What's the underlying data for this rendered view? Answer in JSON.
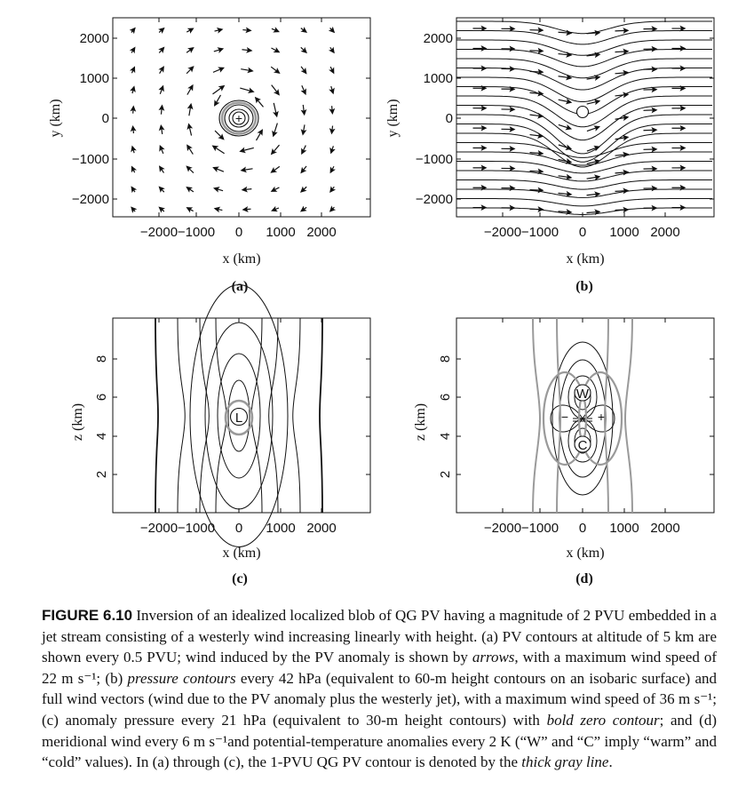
{
  "panels": [
    {
      "label": "(a)",
      "x_title": "x (km)",
      "y_title": "y (km)",
      "x_ticks": [
        "−2000",
        "−1000",
        "0",
        "1000",
        "2000"
      ],
      "y_ticks": [
        "2000",
        "1000",
        "0",
        "−1000",
        "−2000"
      ],
      "center_symbol": "+"
    },
    {
      "label": "(b)",
      "x_title": "x (km)",
      "y_title": "y (km)",
      "x_ticks": [
        "−2000",
        "−1000",
        "0",
        "1000",
        "2000"
      ],
      "y_ticks": [
        "2000",
        "1000",
        "0",
        "−1000",
        "−2000"
      ]
    },
    {
      "label": "(c)",
      "x_title": "x (km)",
      "y_title": "z (km)",
      "x_ticks": [
        "−2000",
        "−1000",
        "0",
        "1000",
        "2000"
      ],
      "y_ticks": [
        "8",
        "6",
        "4",
        "2"
      ],
      "center_symbol": "L"
    },
    {
      "label": "(d)",
      "x_title": "x (km)",
      "y_title": "z (km)",
      "x_ticks": [
        "−2000",
        "−1000",
        "0",
        "1000",
        "2000"
      ],
      "y_ticks": [
        "8",
        "6",
        "4",
        "2"
      ],
      "warm_symbol": "W",
      "cold_symbol": "C",
      "minus_symbol": "−",
      "plus_symbol": "+"
    }
  ],
  "caption": {
    "label": "FIGURE 6.10",
    "segments": [
      {
        "t": "  Inversion of an idealized localized blob of QG PV having a magnitude of 2 PVU embedded in a jet stream consisting of a westerly wind increasing linearly with height. (a) PV contours at altitude of 5 km are shown every 0.5 PVU; wind induced by the PV anomaly is shown by ",
        "i": false
      },
      {
        "t": "arrows",
        "i": true
      },
      {
        "t": ", with a maximum wind speed of 22 m s⁻¹; (b) ",
        "i": false
      },
      {
        "t": "pressure contours",
        "i": true
      },
      {
        "t": " every 42 hPa (equivalent to 60-m height contours on an isobaric surface) and full wind vectors (wind due to the PV anomaly plus the westerly jet), with a maximum wind speed of 36 m s⁻¹; (c) anomaly pressure every 21 hPa (equivalent to 30-m height contours) with ",
        "i": false
      },
      {
        "t": "bold zero contour",
        "i": true
      },
      {
        "t": "; and (d) meridional wind every 6 m s⁻¹and potential-temperature anomalies every 2 K (“W” and “C” imply “warm” and “cold” values). In (a) through (c), the 1-PVU QG PV contour is denoted by the ",
        "i": false
      },
      {
        "t": "thick gray line",
        "i": true
      },
      {
        "t": ".",
        "i": false
      }
    ]
  },
  "colors": {
    "ink": "#111111",
    "gray_contour": "#9a9a9a"
  }
}
